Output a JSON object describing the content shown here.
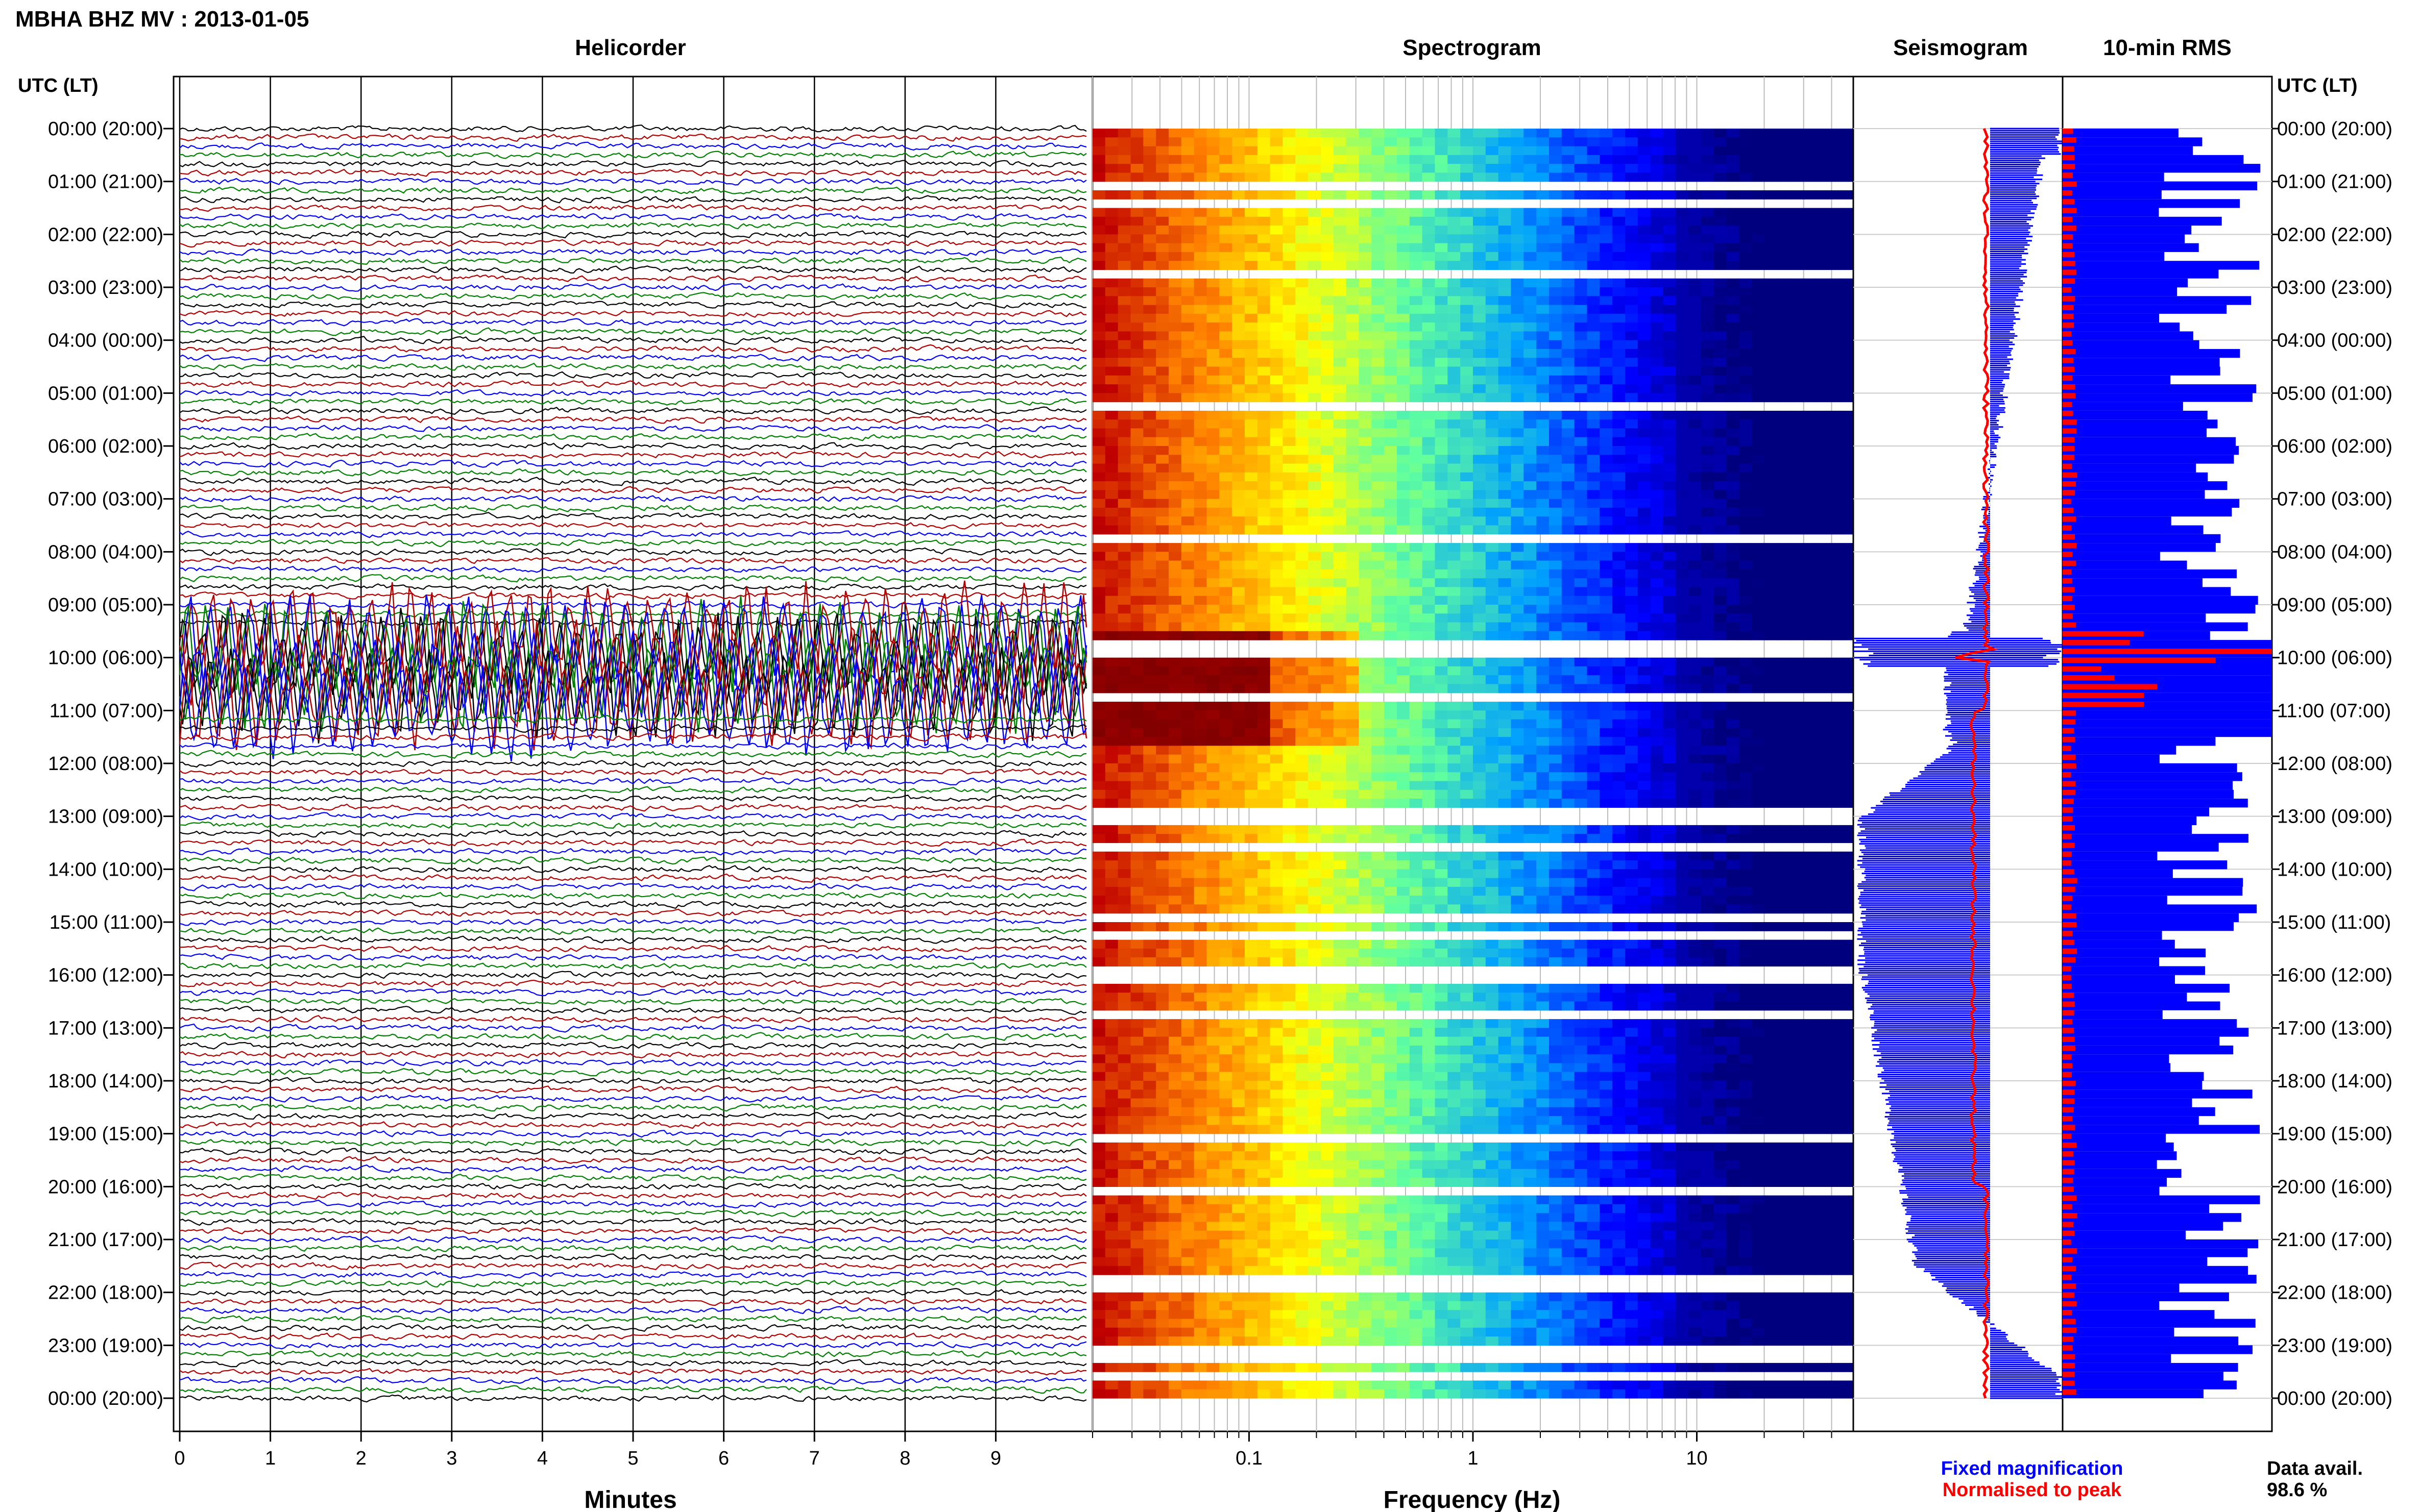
{
  "header": {
    "title": "MBHA BHZ MV : 2013-01-05",
    "time_axis_label": "UTC (LT)"
  },
  "panels": {
    "helicorder": "Helicorder",
    "spectrogram": "Spectrogram",
    "seismogram": "Seismogram",
    "rms": "10-min RMS"
  },
  "time_labels": [
    "00:00 (20:00)",
    "01:00 (21:00)",
    "02:00 (22:00)",
    "03:00 (23:00)",
    "04:00 (00:00)",
    "05:00 (01:00)",
    "06:00 (02:00)",
    "07:00 (03:00)",
    "08:00 (04:00)",
    "09:00 (05:00)",
    "10:00 (06:00)",
    "11:00 (07:00)",
    "12:00 (08:00)",
    "13:00 (09:00)",
    "14:00 (10:00)",
    "15:00 (11:00)",
    "16:00 (12:00)",
    "17:00 (13:00)",
    "18:00 (14:00)",
    "19:00 (15:00)",
    "20:00 (16:00)",
    "21:00 (17:00)",
    "22:00 (18:00)",
    "23:00 (19:00)",
    "00:00 (20:00)"
  ],
  "helicorder_axis": {
    "xlabel": "Minutes",
    "ticks": [
      "0",
      "1",
      "2",
      "3",
      "4",
      "5",
      "6",
      "7",
      "8",
      "9"
    ]
  },
  "spectrogram_axis": {
    "xlabel": "Frequency (Hz)",
    "ticks": [
      "0.1",
      "1",
      "10"
    ]
  },
  "legend": {
    "fixed": "Fixed magnification",
    "normalised": "Normalised to peak",
    "fixed_color": "#0000ff",
    "normalised_color": "#ff0000"
  },
  "data_avail": {
    "label": "Data avail.",
    "value": "98.6 %"
  },
  "chart_data": {
    "type": "line",
    "helicorder": {
      "xlim": [
        0,
        10
      ],
      "xlabel": "Minutes",
      "rows": 144,
      "trace_colors": [
        "#000000",
        "#b00000",
        "#0000ff",
        "#008000"
      ],
      "burst_window_utc_hours": [
        9.4,
        11.0
      ]
    },
    "spectrogram": {
      "xscale": "log",
      "xlim": [
        0.02,
        50
      ],
      "xlabel": "Frequency (Hz)",
      "colormap": [
        "#00007f",
        "#0000ff",
        "#00a0ff",
        "#60ffa0",
        "#ffff00",
        "#ff8000",
        "#c00000",
        "#7f0000"
      ]
    },
    "seismogram": {
      "series": [
        {
          "name": "Fixed magnification",
          "color": "#0000ff"
        },
        {
          "name": "Normalised to peak",
          "color": "#ff0000"
        }
      ]
    },
    "rms_10min": {
      "series": [
        {
          "name": "Fixed magnification",
          "color": "#0000ff"
        },
        {
          "name": "Normalised to peak",
          "color": "#ff0000"
        }
      ]
    },
    "data_availability_percent": 98.6
  }
}
